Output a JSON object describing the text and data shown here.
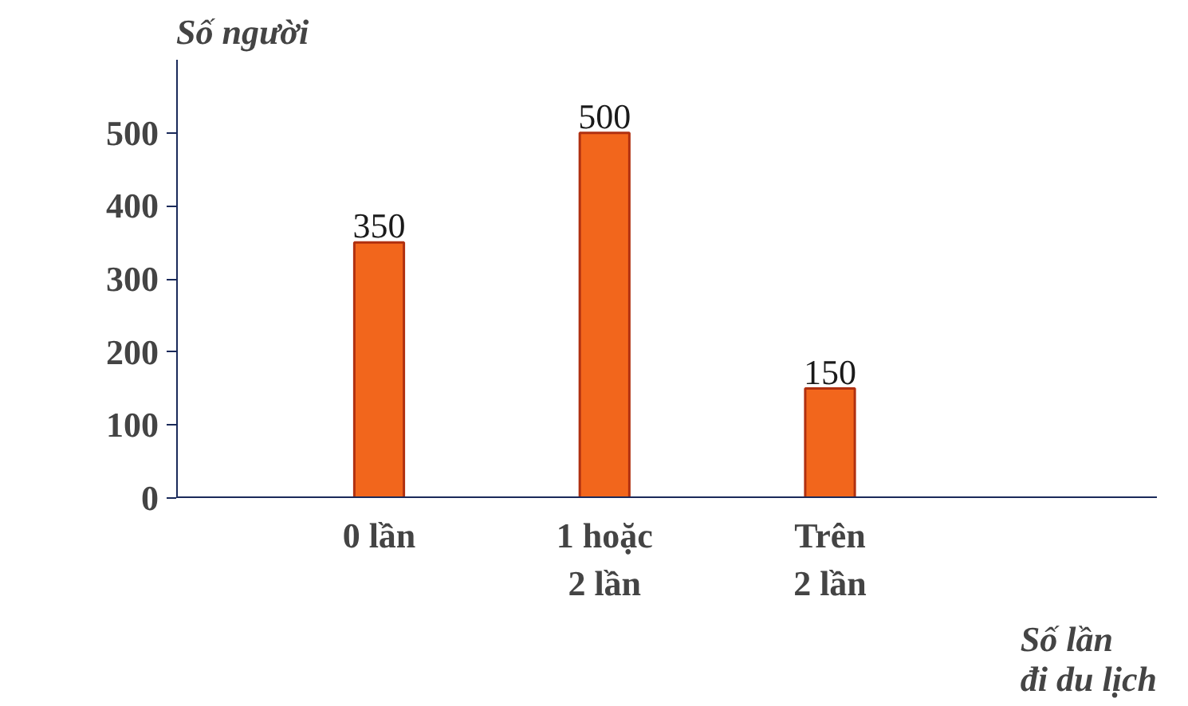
{
  "chart_data": {
    "type": "bar",
    "xlabel": "Số lần\nđi du lịch",
    "ylabel": "Số người",
    "categories": [
      "0 lần",
      "1 hoặc\n2 lần",
      "Trên\n2 lần"
    ],
    "values": [
      350,
      500,
      150
    ],
    "color": "#f2661c",
    "ylim": [
      0,
      600
    ],
    "yticks": [
      0,
      100,
      200,
      300,
      400,
      500
    ],
    "grid": false,
    "data_labels": true
  }
}
